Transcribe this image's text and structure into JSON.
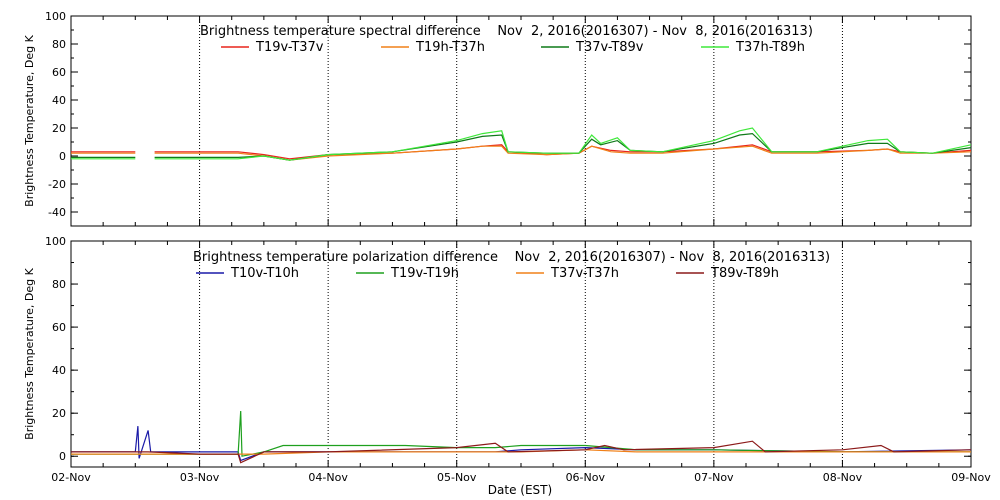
{
  "x_label": "Date (EST)",
  "x_ticks": [
    "02-Nov",
    "03-Nov",
    "04-Nov",
    "05-Nov",
    "06-Nov",
    "07-Nov",
    "08-Nov",
    "09-Nov"
  ],
  "chart_data": [
    {
      "type": "line",
      "title": "Brightness temperature spectral difference    Nov  2, 2016(2016307) - Nov  8, 2016(2016313)",
      "ylabel": "Brightness Temperature, Deg K",
      "xlabel": "",
      "xlim_days": [
        0,
        7
      ],
      "ylim": [
        -50,
        100
      ],
      "y_ticks": [
        "-40",
        "-20",
        "0",
        "20",
        "40",
        "60",
        "80",
        "100"
      ],
      "grid": "vertical dotted lines at each day",
      "legend_position": "top",
      "series": [
        {
          "name": "T19v-T37v",
          "color": "#e8251b",
          "points": [
            [
              0,
              3
            ],
            [
              0.5,
              3
            ],
            [
              0.55,
              null
            ],
            [
              0.65,
              3
            ],
            [
              1.0,
              3
            ],
            [
              1.3,
              3
            ],
            [
              1.5,
              1
            ],
            [
              1.7,
              -2
            ],
            [
              2.0,
              1
            ],
            [
              2.5,
              2
            ],
            [
              3.0,
              5
            ],
            [
              3.2,
              7
            ],
            [
              3.35,
              8
            ],
            [
              3.4,
              3
            ],
            [
              3.7,
              1
            ],
            [
              3.95,
              2
            ],
            [
              4.05,
              7
            ],
            [
              4.2,
              4
            ],
            [
              4.35,
              3
            ],
            [
              4.6,
              3
            ],
            [
              5.0,
              5
            ],
            [
              5.3,
              8
            ],
            [
              5.45,
              3
            ],
            [
              5.8,
              3
            ],
            [
              6.2,
              4
            ],
            [
              6.35,
              5
            ],
            [
              6.45,
              3
            ],
            [
              6.7,
              2
            ],
            [
              7.0,
              4
            ]
          ]
        },
        {
          "name": "T19h-T37h",
          "color": "#f08018",
          "points": [
            [
              0,
              2
            ],
            [
              0.5,
              2
            ],
            [
              0.55,
              null
            ],
            [
              0.65,
              2
            ],
            [
              1.0,
              2
            ],
            [
              1.3,
              2
            ],
            [
              1.5,
              0
            ],
            [
              1.7,
              -3
            ],
            [
              2.0,
              0
            ],
            [
              2.5,
              2
            ],
            [
              3.0,
              5
            ],
            [
              3.2,
              7
            ],
            [
              3.35,
              7
            ],
            [
              3.4,
              2
            ],
            [
              3.7,
              1
            ],
            [
              3.95,
              2
            ],
            [
              4.05,
              7
            ],
            [
              4.2,
              3
            ],
            [
              4.35,
              2
            ],
            [
              4.6,
              2
            ],
            [
              5.0,
              5
            ],
            [
              5.3,
              7
            ],
            [
              5.45,
              2
            ],
            [
              5.8,
              2
            ],
            [
              6.2,
              4
            ],
            [
              6.35,
              5
            ],
            [
              6.45,
              2
            ],
            [
              6.7,
              2
            ],
            [
              7.0,
              3
            ]
          ]
        },
        {
          "name": "T37v-T89v",
          "color": "#0f7a19",
          "points": [
            [
              0,
              -1
            ],
            [
              0.5,
              -1
            ],
            [
              0.55,
              null
            ],
            [
              0.65,
              -1
            ],
            [
              1.0,
              -1
            ],
            [
              1.3,
              -1
            ],
            [
              1.5,
              0
            ],
            [
              1.7,
              -3
            ],
            [
              2.0,
              1
            ],
            [
              2.5,
              3
            ],
            [
              3.0,
              10
            ],
            [
              3.2,
              14
            ],
            [
              3.35,
              15
            ],
            [
              3.4,
              3
            ],
            [
              3.7,
              2
            ],
            [
              3.95,
              2
            ],
            [
              4.05,
              12
            ],
            [
              4.12,
              8
            ],
            [
              4.25,
              11
            ],
            [
              4.35,
              4
            ],
            [
              4.6,
              3
            ],
            [
              5.0,
              9
            ],
            [
              5.2,
              15
            ],
            [
              5.3,
              16
            ],
            [
              5.45,
              3
            ],
            [
              5.8,
              3
            ],
            [
              6.2,
              9
            ],
            [
              6.35,
              9
            ],
            [
              6.45,
              3
            ],
            [
              6.7,
              2
            ],
            [
              7.0,
              6
            ]
          ]
        },
        {
          "name": "T37h-T89h",
          "color": "#3ee83a",
          "points": [
            [
              0,
              -2
            ],
            [
              0.5,
              -2
            ],
            [
              0.55,
              null
            ],
            [
              0.65,
              -2
            ],
            [
              1.0,
              -2
            ],
            [
              1.3,
              -2
            ],
            [
              1.5,
              0
            ],
            [
              1.7,
              -3
            ],
            [
              2.0,
              1
            ],
            [
              2.5,
              3
            ],
            [
              3.0,
              11
            ],
            [
              3.2,
              16
            ],
            [
              3.35,
              18
            ],
            [
              3.4,
              3
            ],
            [
              3.7,
              2
            ],
            [
              3.95,
              2
            ],
            [
              4.05,
              15
            ],
            [
              4.12,
              9
            ],
            [
              4.25,
              13
            ],
            [
              4.35,
              4
            ],
            [
              4.6,
              3
            ],
            [
              5.0,
              11
            ],
            [
              5.2,
              18
            ],
            [
              5.3,
              20
            ],
            [
              5.45,
              3
            ],
            [
              5.8,
              3
            ],
            [
              6.2,
              11
            ],
            [
              6.35,
              12
            ],
            [
              6.45,
              3
            ],
            [
              6.7,
              2
            ],
            [
              7.0,
              8
            ]
          ]
        }
      ]
    },
    {
      "type": "line",
      "title": "Brightness temperature polarization difference    Nov  2, 2016(2016307) - Nov  8, 2016(2016313)",
      "ylabel": "Brightness Temperature, Deg K",
      "xlabel": "Date (EST)",
      "xlim_days": [
        0,
        7
      ],
      "ylim": [
        -5,
        100
      ],
      "y_ticks": [
        "0",
        "20",
        "40",
        "60",
        "80",
        "100"
      ],
      "grid": "vertical dotted lines at each day",
      "legend_position": "top",
      "series": [
        {
          "name": "T10v-T10h",
          "color": "#1a1aa8",
          "points": [
            [
              0,
              2
            ],
            [
              0.5,
              2
            ],
            [
              0.52,
              14
            ],
            [
              0.53,
              -1
            ],
            [
              0.6,
              12
            ],
            [
              0.62,
              2
            ],
            [
              1.0,
              2
            ],
            [
              1.3,
              2
            ],
            [
              1.32,
              -2
            ],
            [
              1.5,
              2
            ],
            [
              2.0,
              2
            ],
            [
              3.0,
              2
            ],
            [
              3.3,
              2
            ],
            [
              3.5,
              3
            ],
            [
              4.0,
              4
            ],
            [
              4.4,
              3
            ],
            [
              5.0,
              3
            ],
            [
              6.0,
              2
            ],
            [
              7.0,
              3
            ]
          ]
        },
        {
          "name": "T19v-T19h",
          "color": "#1ea01e",
          "points": [
            [
              0,
              1
            ],
            [
              0.5,
              1
            ],
            [
              0.6,
              1
            ],
            [
              1.0,
              1
            ],
            [
              1.3,
              1
            ],
            [
              1.32,
              21
            ],
            [
              1.33,
              0
            ],
            [
              1.5,
              2
            ],
            [
              1.65,
              5
            ],
            [
              2.0,
              5
            ],
            [
              2.6,
              5
            ],
            [
              3.0,
              4
            ],
            [
              3.3,
              4
            ],
            [
              3.5,
              5
            ],
            [
              4.0,
              5
            ],
            [
              4.4,
              3
            ],
            [
              5.0,
              3
            ],
            [
              6.0,
              2
            ],
            [
              7.0,
              2
            ]
          ]
        },
        {
          "name": "T37v-T37h",
          "color": "#f08018",
          "points": [
            [
              0,
              1
            ],
            [
              0.5,
              1
            ],
            [
              0.6,
              1
            ],
            [
              1.0,
              1
            ],
            [
              1.3,
              1
            ],
            [
              1.5,
              1
            ],
            [
              2.0,
              2
            ],
            [
              3.0,
              2
            ],
            [
              3.3,
              2
            ],
            [
              3.5,
              2
            ],
            [
              4.0,
              3
            ],
            [
              4.4,
              2
            ],
            [
              5.0,
              2
            ],
            [
              6.0,
              2
            ],
            [
              7.0,
              2
            ]
          ]
        },
        {
          "name": "T89v-T89h",
          "color": "#8c1a1a",
          "points": [
            [
              0,
              2
            ],
            [
              0.5,
              2
            ],
            [
              0.6,
              2
            ],
            [
              1.0,
              1
            ],
            [
              1.3,
              1
            ],
            [
              1.32,
              -3
            ],
            [
              1.5,
              2
            ],
            [
              2.0,
              2
            ],
            [
              3.0,
              4
            ],
            [
              3.3,
              6
            ],
            [
              3.4,
              2
            ],
            [
              4.0,
              3
            ],
            [
              4.15,
              5
            ],
            [
              4.3,
              3
            ],
            [
              5.0,
              4
            ],
            [
              5.3,
              7
            ],
            [
              5.4,
              2
            ],
            [
              6.0,
              3
            ],
            [
              6.3,
              5
            ],
            [
              6.4,
              2
            ],
            [
              7.0,
              3
            ]
          ]
        }
      ]
    }
  ]
}
